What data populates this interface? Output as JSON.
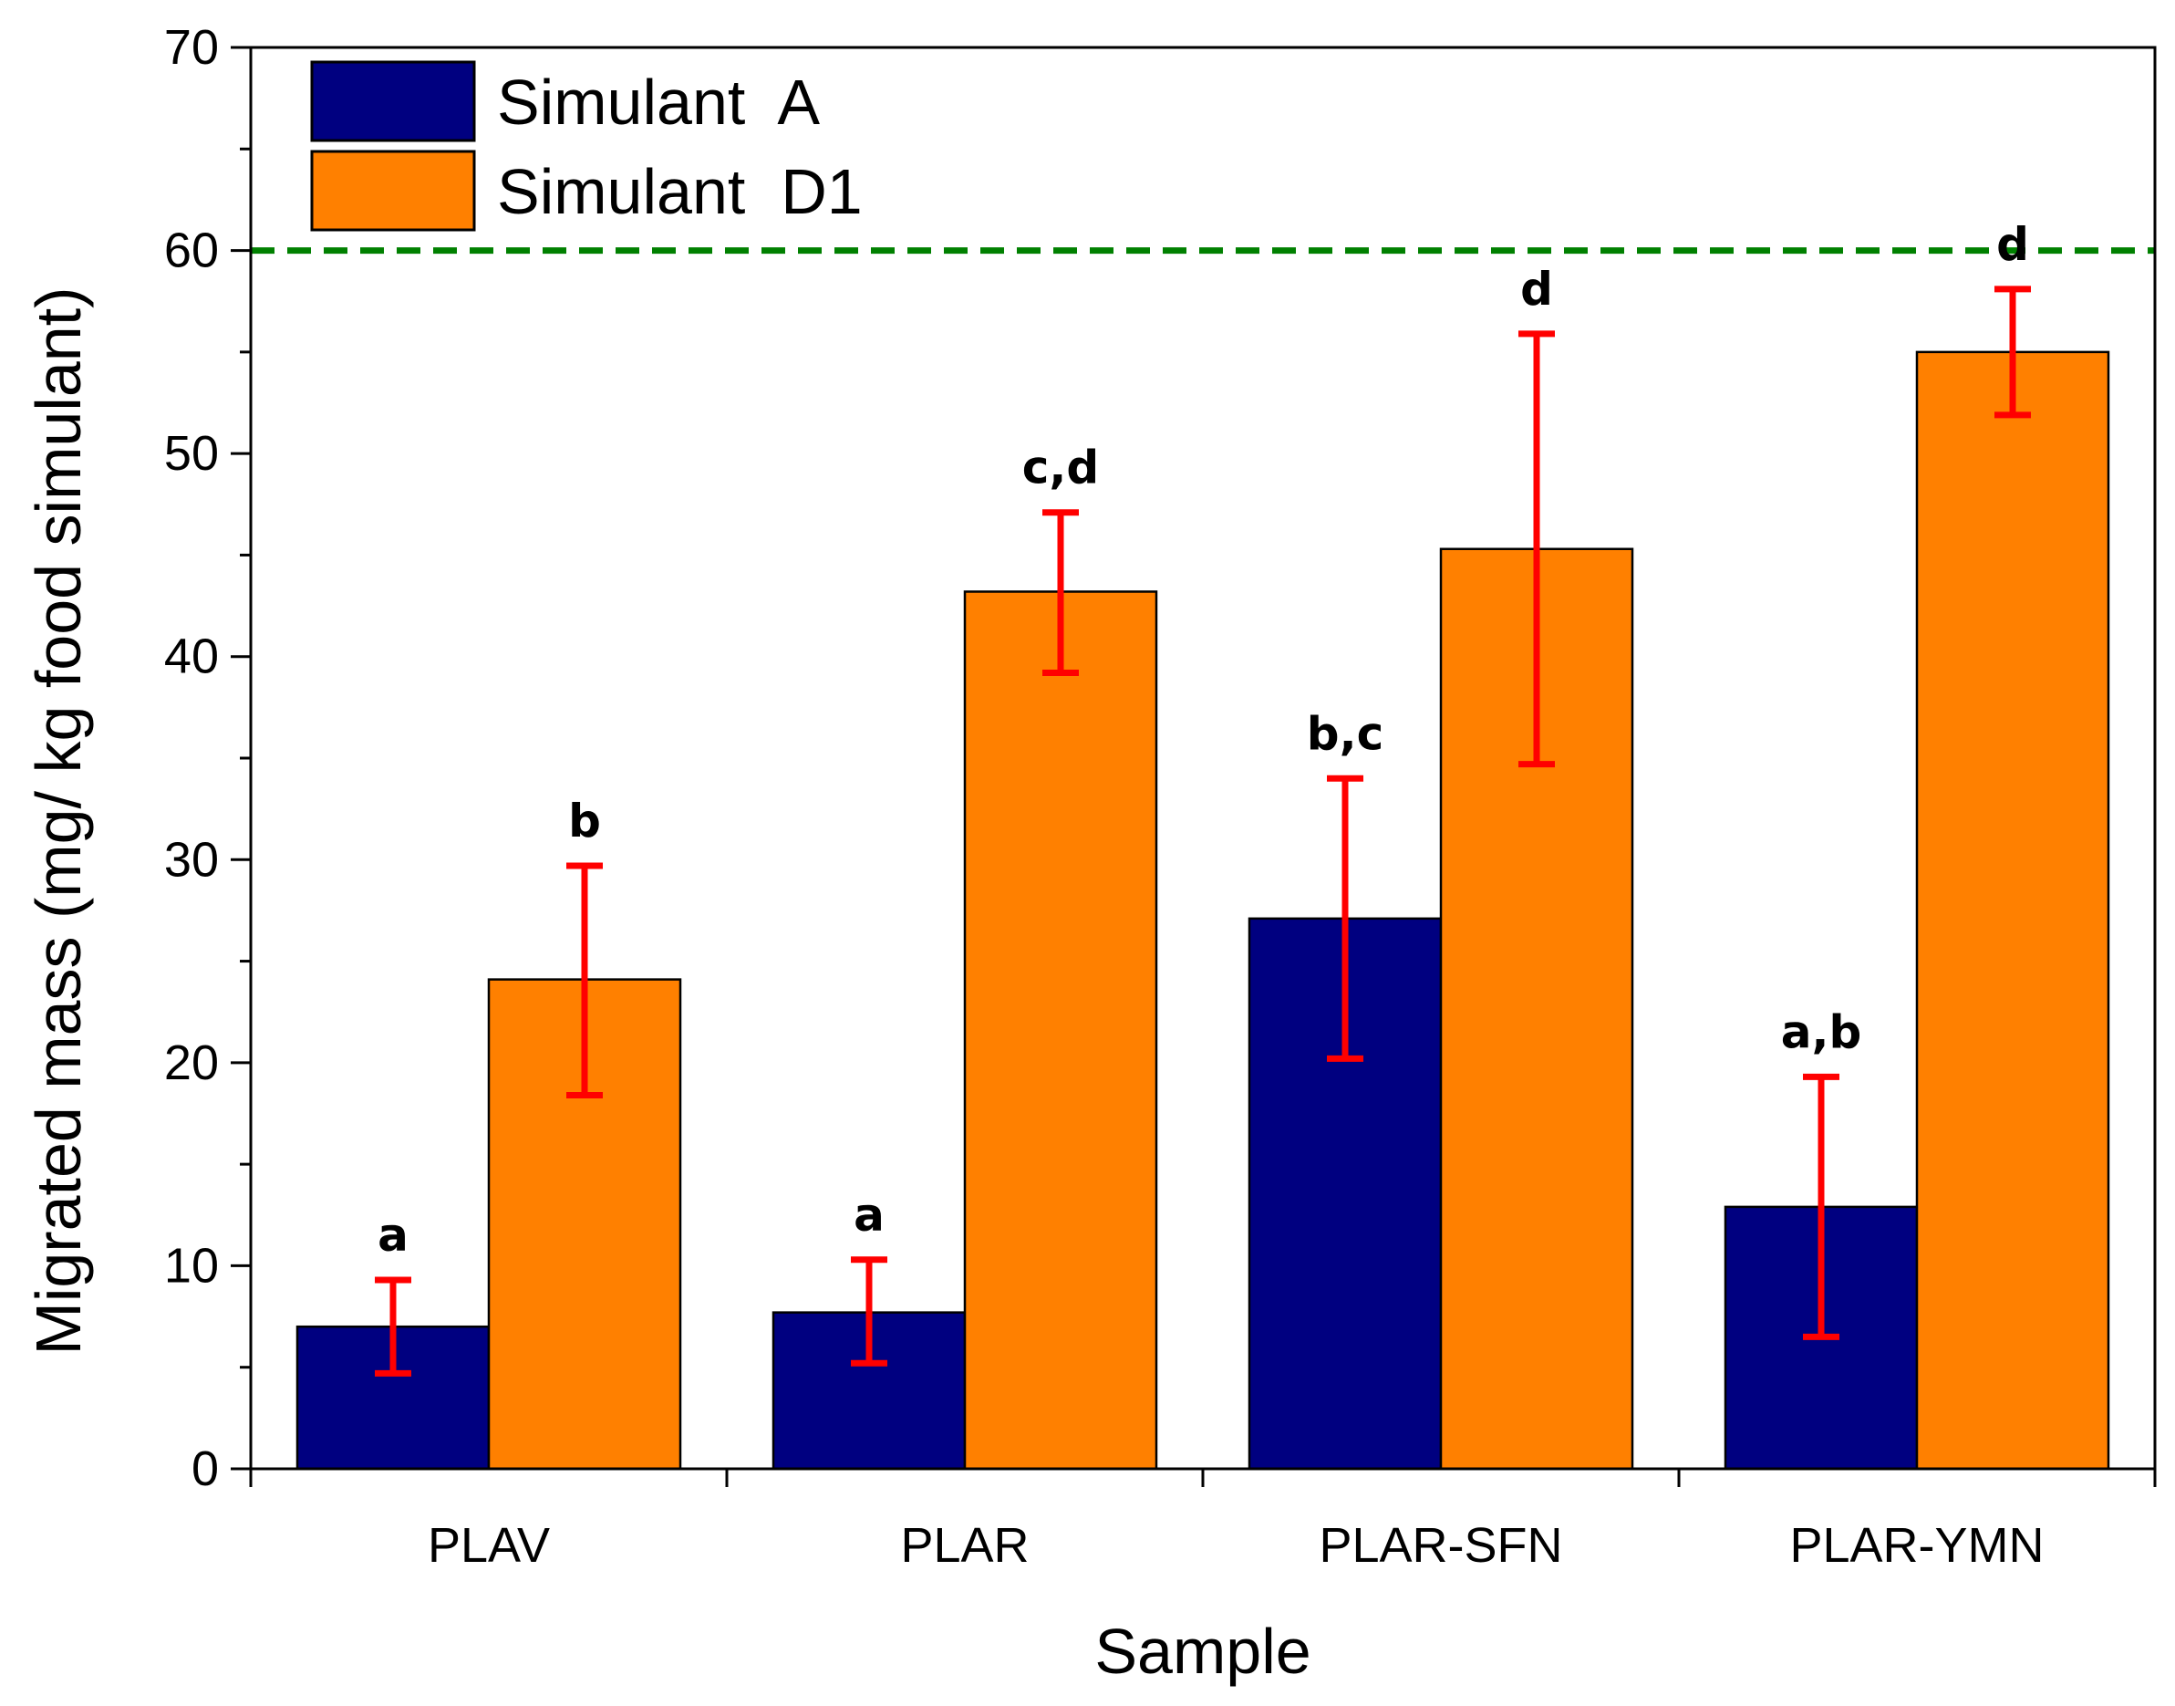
{
  "chart_data": {
    "type": "bar",
    "title": "",
    "xlabel": "Sample",
    "ylabel": "Migrated mass (mg/ kg food simulant)",
    "ylim": [
      0,
      70
    ],
    "yticks": [
      "0",
      "10",
      "20",
      "30",
      "40",
      "50",
      "60",
      "70"
    ],
    "categories": [
      "PLAV",
      "PLAR",
      "PLAR-SFN",
      "PLAR-YMN"
    ],
    "series": [
      {
        "name": "Simulant  A",
        "color": "#000080",
        "values": [
          7.0,
          7.7,
          27.1,
          12.9
        ],
        "err_low": [
          4.7,
          5.2,
          20.2,
          6.5
        ],
        "err_high": [
          9.3,
          10.3,
          34.0,
          19.3
        ],
        "labels": [
          "a",
          "a",
          "b,c",
          "a,b"
        ]
      },
      {
        "name": "Simulant  D1",
        "color": "#FF8000",
        "values": [
          24.1,
          43.2,
          45.3,
          55.0
        ],
        "err_low": [
          18.4,
          39.2,
          34.7,
          51.9
        ],
        "err_high": [
          29.7,
          47.1,
          55.9,
          58.1
        ],
        "labels": [
          "b",
          "c,d",
          "d",
          "d"
        ]
      }
    ],
    "reference_line": {
      "value": 60,
      "color": "#008000",
      "style": "dashed"
    },
    "errorbar_color": "#FF0000",
    "legend_position": "top-left",
    "grid": false
  }
}
